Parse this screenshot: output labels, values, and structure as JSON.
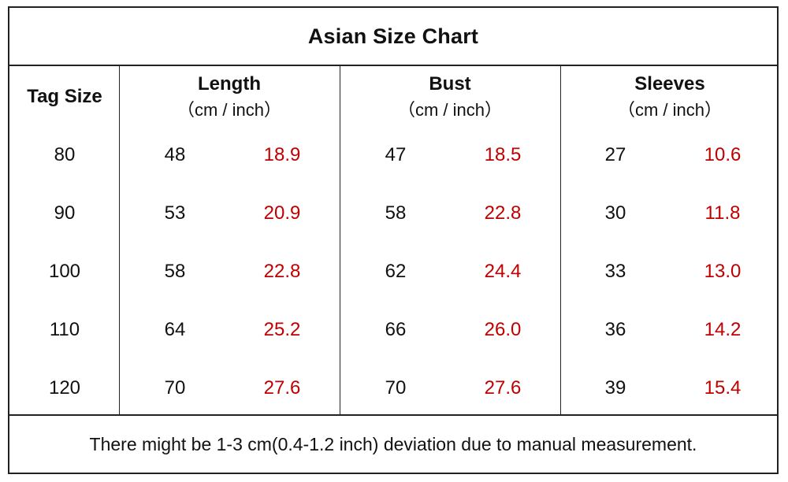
{
  "title": "Asian Size Chart",
  "columns": {
    "tag": "Tag Size",
    "length": {
      "label": "Length",
      "unit": "（cm / inch）"
    },
    "bust": {
      "label": "Bust",
      "unit": "（cm / inch）"
    },
    "sleeves": {
      "label": "Sleeves",
      "unit": "（cm / inch）"
    }
  },
  "rows": [
    {
      "tag": "80",
      "length_cm": "48",
      "length_in": "18.9",
      "bust_cm": "47",
      "bust_in": "18.5",
      "sleeves_cm": "27",
      "sleeves_in": "10.6"
    },
    {
      "tag": "90",
      "length_cm": "53",
      "length_in": "20.9",
      "bust_cm": "58",
      "bust_in": "22.8",
      "sleeves_cm": "30",
      "sleeves_in": "11.8"
    },
    {
      "tag": "100",
      "length_cm": "58",
      "length_in": "22.8",
      "bust_cm": "62",
      "bust_in": "24.4",
      "sleeves_cm": "33",
      "sleeves_in": "13.0"
    },
    {
      "tag": "110",
      "length_cm": "64",
      "length_in": "25.2",
      "bust_cm": "66",
      "bust_in": "26.0",
      "sleeves_cm": "36",
      "sleeves_in": "14.2"
    },
    {
      "tag": "120",
      "length_cm": "70",
      "length_in": "27.6",
      "bust_cm": "70",
      "bust_in": "27.6",
      "sleeves_cm": "39",
      "sleeves_in": "15.4"
    }
  ],
  "footer": "There might be 1-3 cm(0.4-1.2 inch) deviation due to manual measurement.",
  "colors": {
    "inch_value": "#c00000",
    "text": "#111111",
    "border": "#222222"
  }
}
